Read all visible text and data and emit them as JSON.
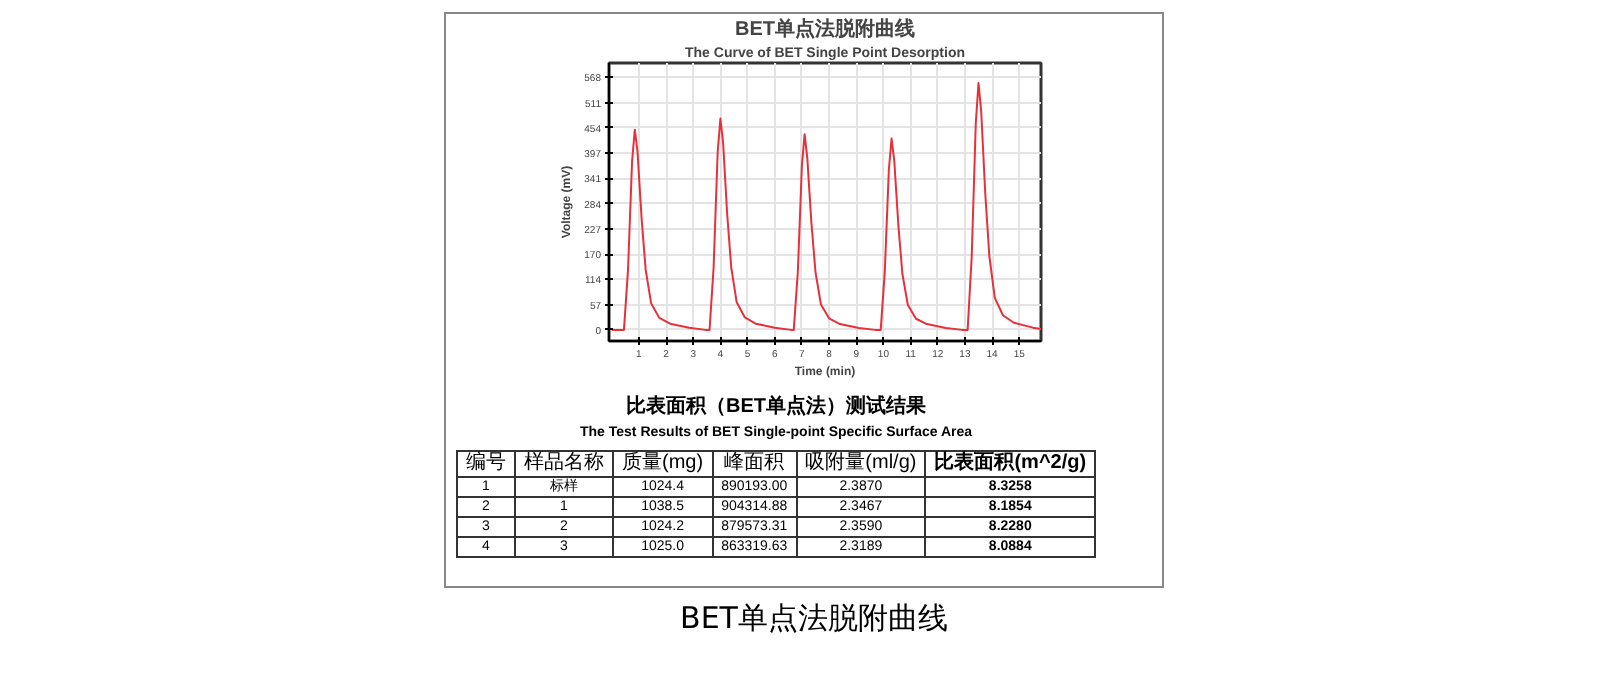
{
  "chart_data": {
    "type": "line",
    "title": "BET单点法脱附曲线",
    "subtitle": "The Curve of BET Single Point Desorption",
    "xlabel": "Time (min)",
    "ylabel": "Voltage (mV)",
    "x": [
      0,
      0.45,
      0.6,
      0.75,
      0.85,
      0.95,
      1.1,
      1.25,
      1.45,
      1.75,
      2.15,
      2.85,
      3.45,
      3.6,
      3.75,
      3.9,
      4.0,
      4.1,
      4.25,
      4.4,
      4.6,
      4.9,
      5.3,
      6.0,
      6.6,
      6.7,
      6.85,
      7.0,
      7.1,
      7.2,
      7.35,
      7.5,
      7.7,
      8.0,
      8.4,
      9.1,
      9.7,
      9.9,
      10.05,
      10.2,
      10.3,
      10.4,
      10.55,
      10.7,
      10.9,
      11.2,
      11.6,
      12.3,
      12.9,
      13.1,
      13.25,
      13.4,
      13.5,
      13.6,
      13.75,
      13.9,
      14.1,
      14.4,
      14.8,
      15.5,
      15.8
    ],
    "series": [
      {
        "color": "#e8303a",
        "values": [
          0,
          0,
          135,
          380,
          450,
          400,
          250,
          135,
          60,
          27,
          14,
          5,
          0,
          0,
          140,
          400,
          475,
          420,
          260,
          140,
          62,
          28,
          14,
          5,
          0,
          0,
          130,
          370,
          440,
          385,
          240,
          130,
          57,
          26,
          13,
          4,
          0,
          0,
          130,
          360,
          430,
          380,
          235,
          125,
          56,
          25,
          13,
          4,
          0,
          0,
          165,
          465,
          555,
          490,
          305,
          165,
          72,
          33,
          16,
          5,
          2
        ]
      }
    ],
    "xlim": [
      -0.1,
      15.8
    ],
    "ylim": [
      -25,
      600
    ],
    "xticks": [
      1,
      2,
      3,
      4,
      5,
      6,
      7,
      8,
      9,
      10,
      11,
      12,
      13,
      14,
      15
    ],
    "yticks": [
      0,
      57,
      114,
      170,
      227,
      284,
      341,
      397,
      454,
      511,
      568
    ],
    "grid": true,
    "marker": "none",
    "line_style": "solid",
    "annotations": [
      "比表面积（BET单点法）测试结果",
      "The Test Results of BET Single-point Specific Surface Area",
      "编号",
      "样品名称",
      "质量(mg)",
      "峰面积",
      "吸附量(ml/g)",
      "比表面积(m^2/g)",
      "1",
      "标样",
      "1024.4",
      "890193.00",
      "2.3870",
      "8.3258",
      "2",
      "1",
      "1038.5",
      "904314.88",
      "2.3467",
      "8.1854",
      "3",
      "2",
      "1024.2",
      "879573.31",
      "2.3590",
      "8.2280",
      "4",
      "3",
      "1025.0",
      "863319.63",
      "2.3189",
      "8.0884",
      "BET单点法脱附曲线"
    ]
  }
}
